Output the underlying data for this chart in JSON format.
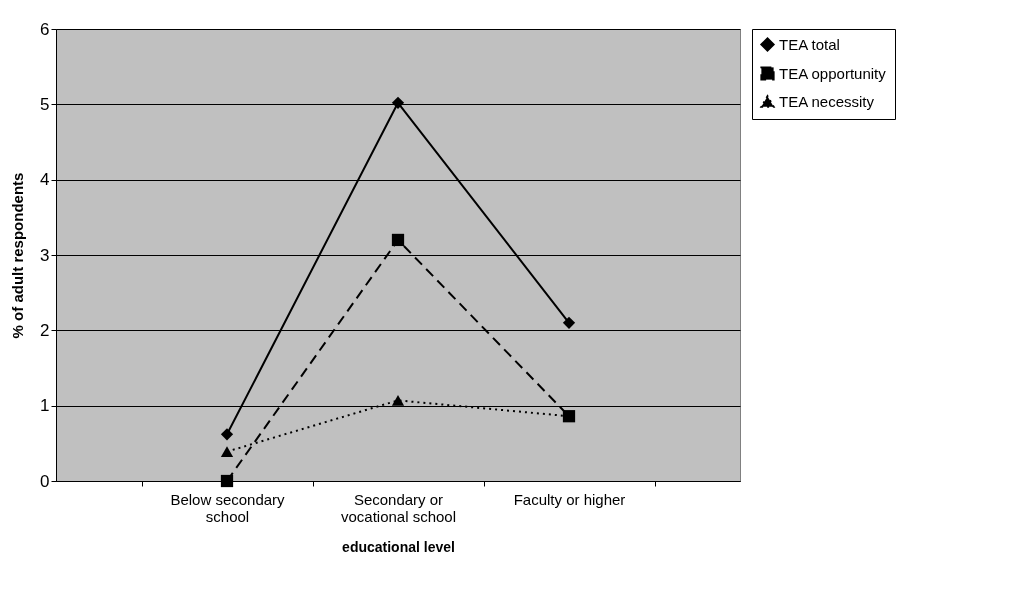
{
  "chart_data": {
    "type": "line",
    "xlabel": "educational level",
    "ylabel": "% of adult respondents",
    "categories": [
      "Below secondary school",
      "Secondary or vocational school",
      "Faculty or higher"
    ],
    "series": [
      {
        "name": "TEA total",
        "color": "#000000",
        "marker": "diamond",
        "line_style": "solid",
        "values": [
          0.62,
          5.02,
          2.1
        ]
      },
      {
        "name": "TEA opportunity",
        "color": "#000000",
        "marker": "square",
        "line_style": "dashed",
        "values": [
          0,
          3.2,
          0.86
        ]
      },
      {
        "name": "TEA necessity",
        "color": "#000000",
        "marker": "triangle",
        "line_style": "dotted",
        "values": [
          0.39,
          1.07,
          0.86
        ]
      }
    ],
    "ylim": [
      0,
      6
    ],
    "yticks": [
      0,
      1,
      2,
      3,
      4,
      5,
      6
    ],
    "grid": "y",
    "legend": "right"
  }
}
